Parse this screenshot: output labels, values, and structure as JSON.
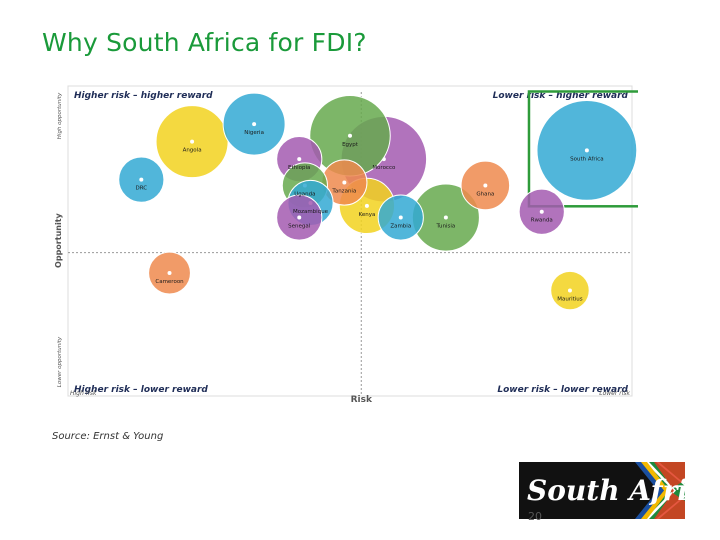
{
  "slide": {
    "title": "Why South Africa for FDI?",
    "source": "Source: Ernst & Young",
    "page_number": "20"
  },
  "logo": {
    "text": "South Africa"
  },
  "chart_data": {
    "type": "bubble-quadrant",
    "x_label": "Risk",
    "x_ticks": {
      "left": "High risk",
      "right": "Lower risk"
    },
    "y_label": "Opportunity",
    "y_ticks": {
      "top": "High opportunity",
      "bottom": "Lower opportunity"
    },
    "quadrants": {
      "top_left": "Higher risk – higher reward",
      "top_right": "Lower risk – higher reward",
      "bottom_left": "Higher risk – lower reward",
      "bottom_right": "Lower risk – lower reward"
    },
    "highlight_country": "South Africa",
    "colors": {
      "yellow": "#f2d21e",
      "blue": "#33a9d3",
      "green": "#66a94e",
      "purple": "#a35bb0",
      "orange": "#ef8a4d",
      "highlight": "#2e9b3a"
    },
    "countries": [
      {
        "name": "Nigeria",
        "x": 0.33,
        "y": 0.89,
        "size": 0.5,
        "color": "blue"
      },
      {
        "name": "Angola",
        "x": 0.22,
        "y": 0.83,
        "size": 0.62,
        "color": "yellow"
      },
      {
        "name": "DRC",
        "x": 0.13,
        "y": 0.7,
        "size": 0.3,
        "color": "blue"
      },
      {
        "name": "Egypt",
        "x": 0.5,
        "y": 0.85,
        "size": 0.72,
        "color": "green"
      },
      {
        "name": "Morocco",
        "x": 0.56,
        "y": 0.77,
        "size": 0.78,
        "color": "purple"
      },
      {
        "name": "Ethiopia",
        "x": 0.41,
        "y": 0.77,
        "size": 0.3,
        "color": "purple"
      },
      {
        "name": "Tanzania",
        "x": 0.49,
        "y": 0.69,
        "size": 0.3,
        "color": "orange"
      },
      {
        "name": "Uganda",
        "x": 0.42,
        "y": 0.68,
        "size": 0.3,
        "color": "green"
      },
      {
        "name": "Mozambique",
        "x": 0.43,
        "y": 0.62,
        "size": 0.3,
        "color": "blue"
      },
      {
        "name": "Kenya",
        "x": 0.53,
        "y": 0.61,
        "size": 0.42,
        "color": "yellow"
      },
      {
        "name": "Senegal",
        "x": 0.41,
        "y": 0.57,
        "size": 0.3,
        "color": "purple"
      },
      {
        "name": "Zambia",
        "x": 0.59,
        "y": 0.57,
        "size": 0.3,
        "color": "blue"
      },
      {
        "name": "Tunisia",
        "x": 0.67,
        "y": 0.57,
        "size": 0.56,
        "color": "green"
      },
      {
        "name": "Ghana",
        "x": 0.74,
        "y": 0.68,
        "size": 0.34,
        "color": "orange"
      },
      {
        "name": "Rwanda",
        "x": 0.84,
        "y": 0.59,
        "size": 0.3,
        "color": "purple"
      },
      {
        "name": "South Africa",
        "x": 0.92,
        "y": 0.8,
        "size": 0.95,
        "color": "blue"
      },
      {
        "name": "Cameroon",
        "x": 0.18,
        "y": 0.38,
        "size": 0.26,
        "color": "orange"
      },
      {
        "name": "Mauritius",
        "x": 0.89,
        "y": 0.32,
        "size": 0.22,
        "color": "yellow"
      }
    ]
  }
}
